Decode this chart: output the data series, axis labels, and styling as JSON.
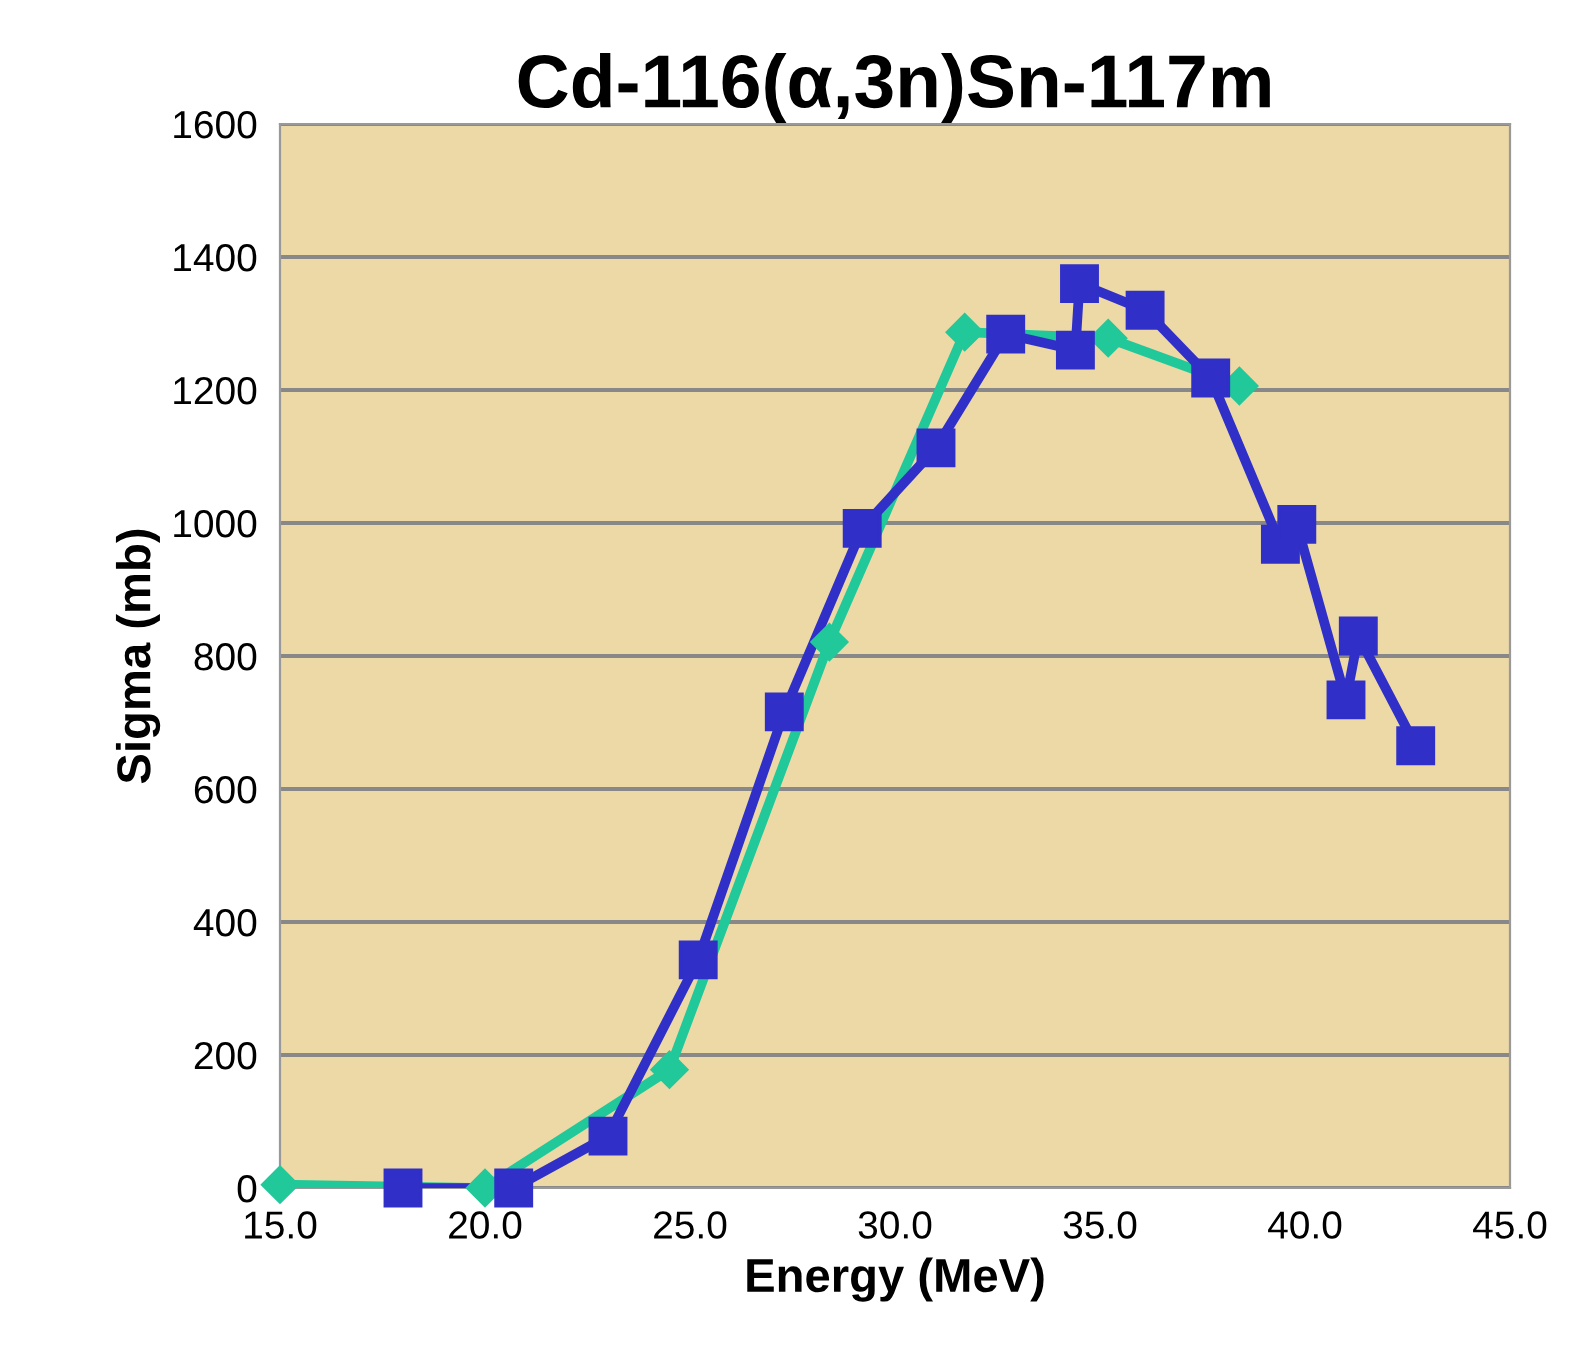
{
  "chart_data": {
    "type": "line",
    "title": "Cd-116(α,3n)Sn-117m",
    "xlabel": "Energy (MeV)",
    "ylabel": "Sigma (mb)",
    "series": [
      {
        "color": "#20c89a",
        "marker": "diamond",
        "x": [
          15.0,
          20.0,
          24.5,
          28.4,
          31.7,
          35.2,
          38.4
        ],
        "values": [
          5,
          0,
          178,
          821,
          1287,
          1278,
          1206
        ]
      },
      {
        "color": "#3030c8",
        "marker": "square",
        "x": [
          18.0,
          20.7,
          23.0,
          25.2,
          27.3,
          29.2,
          31.0,
          32.7,
          34.4,
          34.5,
          36.1,
          37.7,
          39.4,
          39.8,
          41.0,
          41.3,
          42.7
        ],
        "values": [
          0,
          0,
          78,
          343,
          716,
          992,
          1113,
          1284,
          1260,
          1360,
          1320,
          1218,
          968,
          998,
          734,
          830,
          665
        ]
      }
    ],
    "xlim": [
      15,
      45
    ],
    "xticks": [
      {
        "value": 15,
        "label": "15.0"
      },
      {
        "value": 20,
        "label": "20.0"
      },
      {
        "value": 25,
        "label": "25.0"
      },
      {
        "value": 30,
        "label": "30.0"
      },
      {
        "value": 35,
        "label": "35.0"
      },
      {
        "value": 40,
        "label": "40.0"
      },
      {
        "value": 45,
        "label": "45.0"
      }
    ],
    "ylim": [
      0,
      1600
    ],
    "yticks": [
      0,
      200,
      400,
      600,
      800,
      1000,
      1200,
      1400,
      1600
    ],
    "grid": "y",
    "line_style": "solid",
    "legend": false
  }
}
